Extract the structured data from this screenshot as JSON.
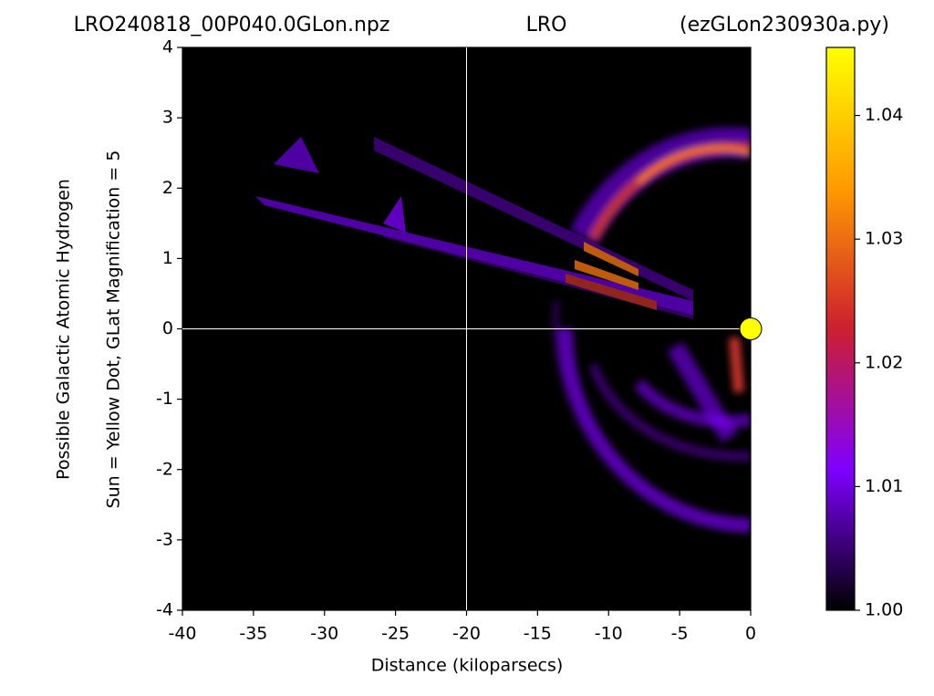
{
  "chart_data": {
    "type": "image",
    "title_left": "LRO240818_00P040.0GLon.npz",
    "title_center": "LRO",
    "title_right": "(ezGLon230930a.py)",
    "xlabel": "Distance (kiloparsecs)",
    "ylabel": [
      "Possible Galactic Atomic Hydrogen",
      "Sun = Yellow Dot, GLat Magnification = 5"
    ],
    "xlim": [
      -40,
      0
    ],
    "ylim": [
      -4,
      4
    ],
    "xticks": [
      -40,
      -35,
      -30,
      -25,
      -20,
      -15,
      -10,
      -5,
      0
    ],
    "yticks": [
      -4,
      -3,
      -2,
      -1,
      0,
      1,
      2,
      3,
      4
    ],
    "crosshair": {
      "x": -20,
      "y": 0,
      "color": "#ffffff"
    },
    "sun": {
      "x": 0,
      "y": 0,
      "color": "#ffff00"
    },
    "colorbar": {
      "lim": [
        1.0,
        1.0455
      ],
      "ticks": [
        {
          "value": 1.0,
          "label": "1.00"
        },
        1.01,
        1.02,
        1.03,
        1.04
      ],
      "colors": [
        "#000000",
        "#7f00ff",
        "#cc1f2f",
        "#ff9a00",
        "#ffff00"
      ]
    }
  }
}
